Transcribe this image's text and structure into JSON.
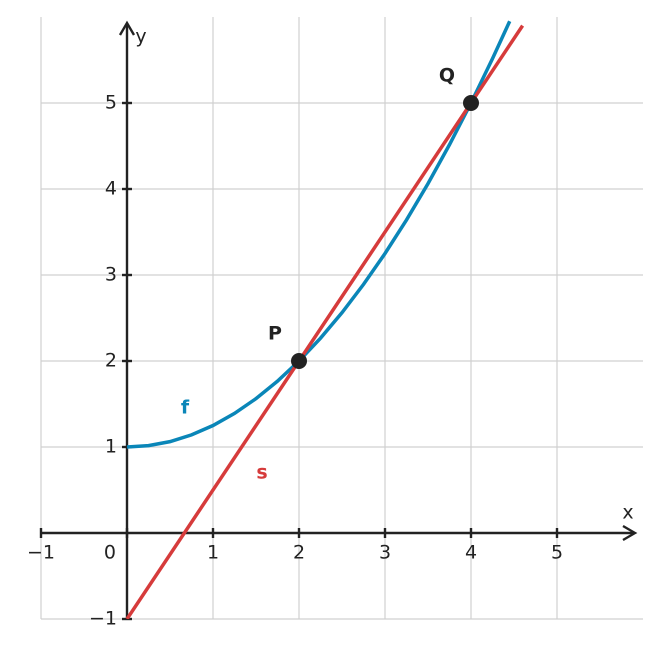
{
  "chart_data": {
    "type": "line",
    "x_label": "x",
    "y_label": "y",
    "xlim": [
      -1,
      6
    ],
    "ylim": [
      -1,
      6
    ],
    "xticks": [
      {
        "value": -1,
        "label": "−1"
      },
      0,
      1,
      2,
      3,
      4,
      5
    ],
    "yticks": [
      {
        "value": -1,
        "label": "−1"
      },
      1,
      2,
      3,
      4,
      5
    ],
    "grid": true,
    "series": [
      {
        "name": "f",
        "color": "#0a86b8",
        "x": [
          0,
          0.25,
          0.5,
          0.75,
          1,
          1.25,
          1.5,
          1.75,
          2,
          2.25,
          2.5,
          2.75,
          3,
          3.25,
          3.5,
          3.75,
          4,
          4.25,
          4.45
        ],
        "values": [
          1,
          1.015625,
          1.0625,
          1.140625,
          1.25,
          1.390625,
          1.5625,
          1.765625,
          2,
          2.265625,
          2.5625,
          2.890625,
          3.25,
          3.640625,
          4.0625,
          4.515625,
          5,
          5.515625,
          5.950625
        ]
      },
      {
        "name": "s",
        "color": "#d63b3b",
        "x": [
          0,
          4.6
        ],
        "values": [
          -1,
          5.9
        ]
      }
    ],
    "points": [
      {
        "label": "P",
        "x": 2,
        "y": 2
      },
      {
        "label": "Q",
        "x": 4,
        "y": 5
      }
    ]
  }
}
